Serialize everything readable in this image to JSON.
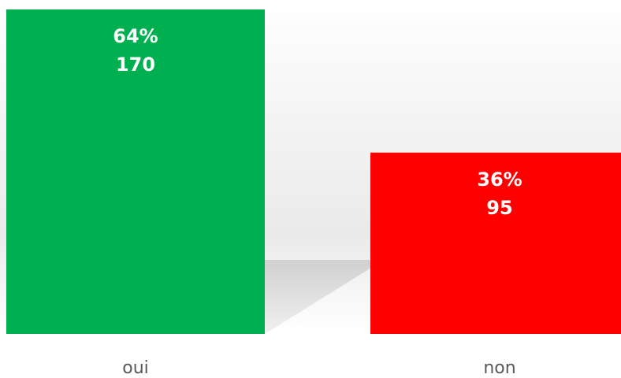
{
  "chart_data": {
    "type": "bar",
    "categories": [
      "oui",
      "non"
    ],
    "values": [
      170,
      95
    ],
    "shares": [
      64,
      36
    ],
    "share_labels": [
      "64%",
      "36%"
    ],
    "colors": [
      "#00b050",
      "#ff0000"
    ]
  }
}
